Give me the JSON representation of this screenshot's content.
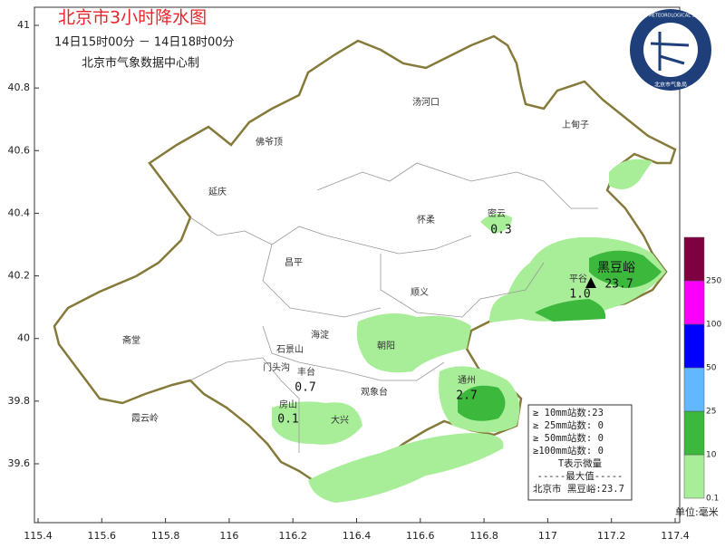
{
  "header": {
    "title": "北京市3小时降水图",
    "period": "14日15时00分 － 14日18时00分",
    "producer": "北京市气象数据中心制"
  },
  "logo": {
    "text": "BEIJING METEOROLOGICAL SERVICE",
    "agency": "北京市气象局"
  },
  "axes": {
    "xticks": [
      115.4,
      115.6,
      115.8,
      116,
      116.2,
      116.4,
      116.6,
      116.8,
      117,
      117.2,
      117.4
    ],
    "yticks": [
      41,
      40.8,
      40.6,
      40.4,
      40.2,
      40,
      39.8,
      39.6
    ]
  },
  "places": [
    "汤河口",
    "上甸子",
    "佛爷顶",
    "延庆",
    "怀柔",
    "密云",
    "昌平",
    "平谷",
    "顺义",
    "海淀",
    "朝阳",
    "斋堂",
    "石景山",
    "门头沟",
    "丰台",
    "观象台",
    "房山",
    "大兴",
    "霞云岭",
    "通州",
    "黑豆峪"
  ],
  "rain_labels": [
    "0.3",
    "23.7",
    "1.0",
    "0.7",
    "0.1",
    "2.7"
  ],
  "legend": {
    "levels": [
      0.1,
      10,
      25,
      50,
      100,
      250
    ],
    "colors": [
      "#a8ee98",
      "#3cb83c",
      "#62b8ff",
      "#0000fc",
      "#fa00fa",
      "#7e0040"
    ],
    "unit": "单位:毫米"
  },
  "stats": {
    "lines": [
      "≥ 10mm站数:23",
      "≥ 25mm站数: 0",
      "≥ 50mm站数: 0",
      "≥100mm站数: 0",
      "T表示微量",
      "-----最大值-----",
      "北京市  黑豆峪:23.7"
    ]
  }
}
